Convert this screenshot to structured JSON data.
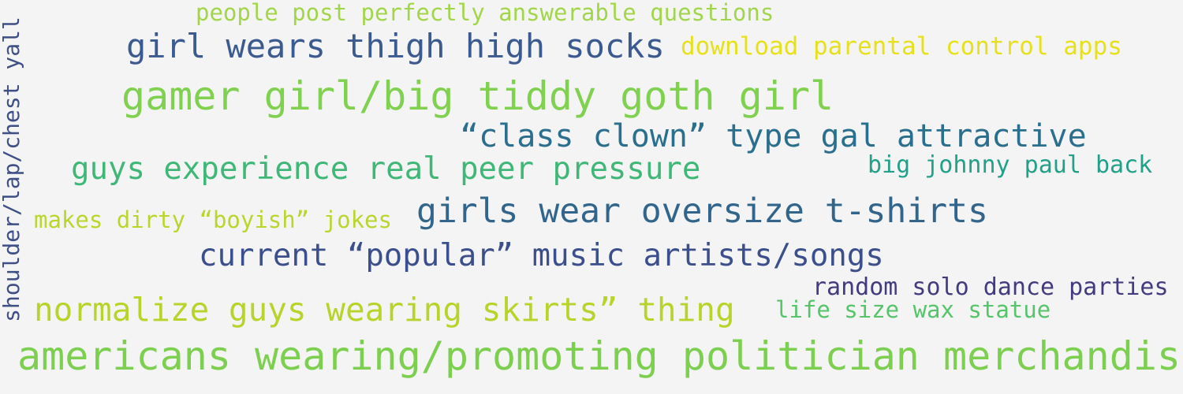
{
  "word_cloud": {
    "words": [
      {
        "text": "people post perfectly answerable questions",
        "color": "#a2d64a"
      },
      {
        "text": "girl wears thigh high socks",
        "color": "#3b5a8f"
      },
      {
        "text": "download parental control apps",
        "color": "#e7e11c"
      },
      {
        "text": "gamer girl/big tiddy goth girl",
        "color": "#7fd14f"
      },
      {
        "text": "“class clown” type gal attractive",
        "color": "#2b6f8e"
      },
      {
        "text": "guys experience real peer pressure",
        "color": "#3fb877"
      },
      {
        "text": "big johnny paul back",
        "color": "#21a08a"
      },
      {
        "text": "makes dirty “boyish” jokes",
        "color": "#b9d62d"
      },
      {
        "text": "girls wear oversize t-shirts",
        "color": "#31658c"
      },
      {
        "text": "current “popular” music artists/songs",
        "color": "#3b4f8c"
      },
      {
        "text": "random solo dance parties",
        "color": "#433b80"
      },
      {
        "text": "normalize guys wearing skirts” thing",
        "color": "#b8d42a"
      },
      {
        "text": "life size wax statue",
        "color": "#56c56a"
      },
      {
        "text": "americans wearing/promoting politician merchandise",
        "color": "#7ccf4f"
      },
      {
        "text": "shoulder/lap/chest yall",
        "color": "#3d4f86"
      }
    ]
  }
}
